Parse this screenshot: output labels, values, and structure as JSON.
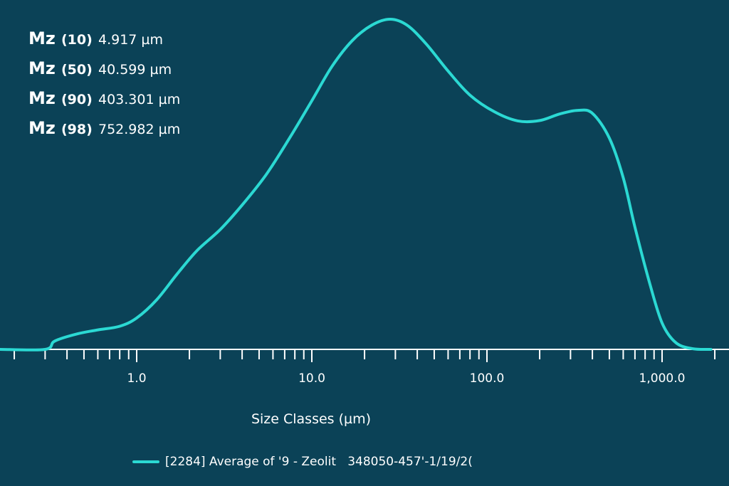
{
  "stats": [
    {
      "label": "Mz",
      "percentile": "(10)",
      "value": "4.917 µm"
    },
    {
      "label": "Mz",
      "percentile": "(50)",
      "value": "40.599 µm"
    },
    {
      "label": "Mz",
      "percentile": "(90)",
      "value": "403.301 µm"
    },
    {
      "label": "Mz",
      "percentile": "(98)",
      "value": "752.982 µm"
    }
  ],
  "chart_data": {
    "type": "line",
    "title": "",
    "xlabel": "Size Classes (µm)",
    "ylabel": "",
    "x_scale": "log",
    "xlim": [
      0.17,
      2000
    ],
    "ylim": [
      0,
      1.0
    ],
    "x_ticks": [
      "1.0",
      "10.0",
      "100.0",
      "1,000.0"
    ],
    "grid": false,
    "legend_position": "bottom",
    "series": [
      {
        "name": "[2284] Average of '9 - Zeolit   348050-457'-1/19/2(",
        "color": "#2bd9d3",
        "x": [
          0.3,
          0.34,
          0.45,
          0.6,
          0.8,
          1.0,
          1.3,
          1.7,
          2.2,
          3.0,
          4.0,
          5.5,
          7.5,
          10,
          13,
          17,
          22,
          28,
          35,
          45,
          60,
          80,
          110,
          150,
          200,
          260,
          330,
          400,
          500,
          600,
          700,
          850,
          1000,
          1200,
          1500,
          1900
        ],
        "y": [
          0.0,
          0.025,
          0.046,
          0.059,
          0.07,
          0.095,
          0.15,
          0.228,
          0.298,
          0.363,
          0.437,
          0.53,
          0.642,
          0.753,
          0.856,
          0.935,
          0.982,
          1.0,
          0.982,
          0.925,
          0.843,
          0.77,
          0.72,
          0.692,
          0.693,
          0.713,
          0.724,
          0.715,
          0.64,
          0.52,
          0.37,
          0.2,
          0.08,
          0.02,
          0.002,
          0.0
        ]
      }
    ]
  },
  "legend": {
    "text": "[2284] Average of '9 - Zeolit   348050-457'-1/19/2("
  }
}
